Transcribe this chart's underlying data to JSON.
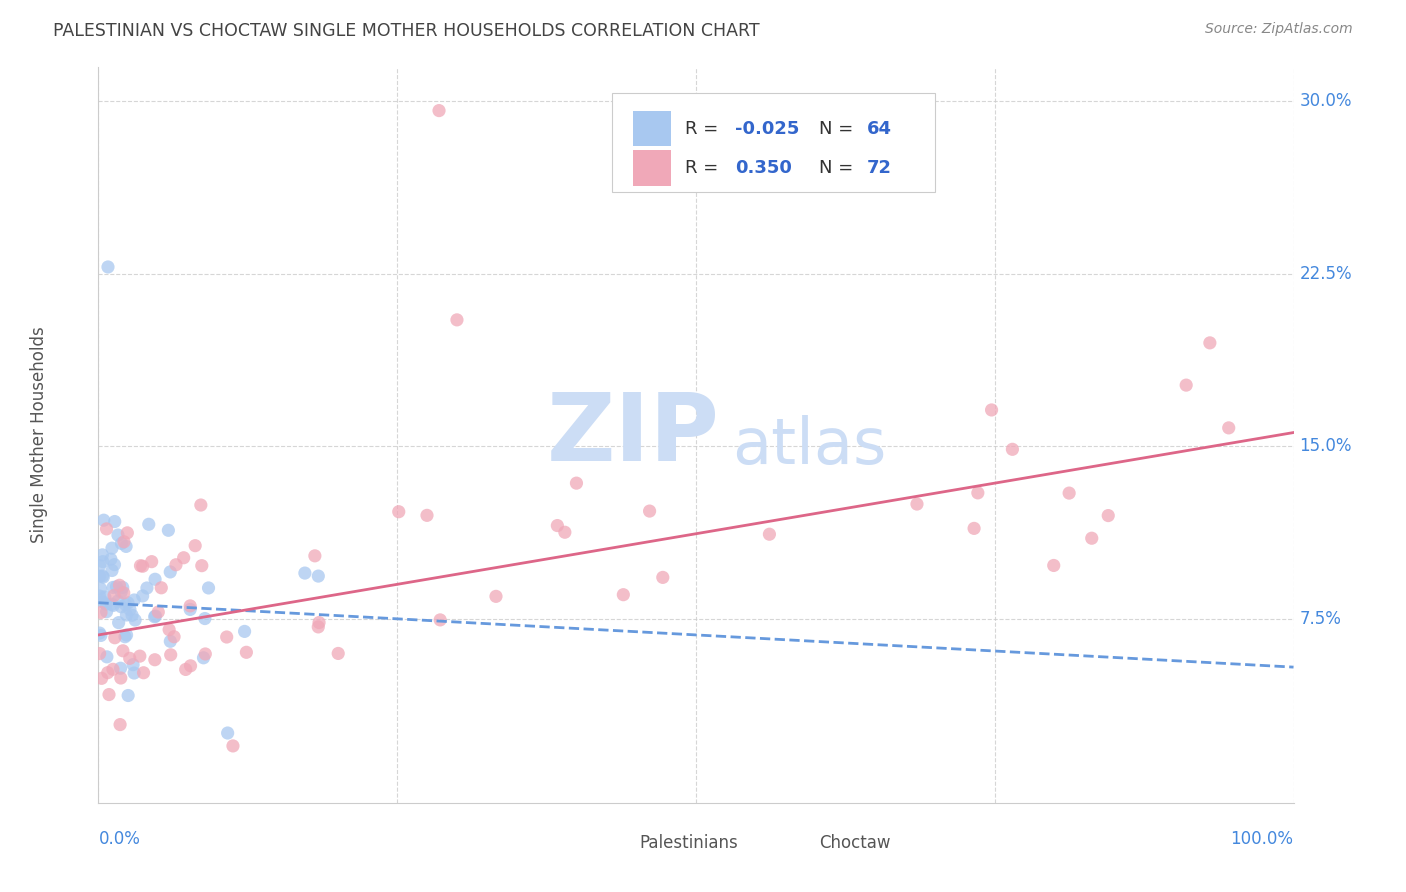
{
  "title": "PALESTINIAN VS CHOCTAW SINGLE MOTHER HOUSEHOLDS CORRELATION CHART",
  "source": "Source: ZipAtlas.com",
  "ylabel": "Single Mother Households",
  "ytick_values": [
    0.0,
    0.075,
    0.15,
    0.225,
    0.3
  ],
  "ytick_labels": [
    "",
    "7.5%",
    "15.0%",
    "22.5%",
    "30.0%"
  ],
  "xlim": [
    0.0,
    1.0
  ],
  "ylim": [
    -0.005,
    0.315
  ],
  "blue_color": "#a8c8f0",
  "pink_color": "#f0a8b8",
  "blue_line_color": "#6699dd",
  "pink_line_color": "#dd6688",
  "watermark_zip_color": "#ccddf5",
  "watermark_atlas_color": "#ccddf5",
  "background_color": "#ffffff",
  "grid_color": "#cccccc",
  "title_color": "#444444",
  "axis_label_color": "#4488dd",
  "ylabel_color": "#555555",
  "legend_text_dark": "#333333",
  "legend_text_blue": "#3366cc",
  "blue_R_str": "-0.025",
  "blue_N_str": "64",
  "pink_R_str": "0.350",
  "pink_N_str": "72",
  "palestinians_label": "Palestinians",
  "choctaw_label": "Choctaw",
  "blue_intercept": 0.082,
  "blue_slope": -0.028,
  "pink_intercept": 0.068,
  "pink_slope": 0.088
}
